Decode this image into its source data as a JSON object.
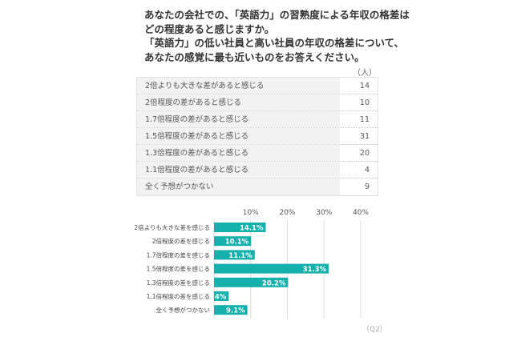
{
  "title": [
    "あなたの会社での、「英語力」の習熟度による年収の格差は",
    "どの程度あると感じますか。",
    "「英語力」の低い社員と高い社員の年収の格差について、",
    "あなたの感覚に最も近いものをお答えください。"
  ],
  "table": {
    "unit": "（人）",
    "rows": [
      {
        "label": "2倍よりも大きな差があると感じる",
        "value": "14"
      },
      {
        "label": "2倍程度の差があると感じる",
        "value": "10"
      },
      {
        "label": "1.7倍程度の差があると感じる",
        "value": "11"
      },
      {
        "label": "1.5倍程度の差があると感じる",
        "value": "31"
      },
      {
        "label": "1.3倍程度の差があると感じる",
        "value": "20"
      },
      {
        "label": "1.1倍程度の差があると感じる",
        "value": "4"
      },
      {
        "label": "全く予想がつかない",
        "value": "9"
      }
    ]
  },
  "chart_data": {
    "type": "bar",
    "orientation": "horizontal",
    "categories": [
      "2倍よりも大きな差を感じる",
      "2倍程度の差を感じる",
      "1.7倍程度の差を感じる",
      "1.5倍程度の差を感じる",
      "1.3倍程度の差を感じる",
      "1.1倍程度の差を感じる",
      "全く予想がつかない"
    ],
    "values": [
      14.1,
      10.1,
      11.1,
      31.3,
      20.2,
      4,
      9.1
    ],
    "data_labels": [
      "14.1%",
      "10.1%",
      "11.1%",
      "31.3%",
      "20.2%",
      "4%",
      "9.1%"
    ],
    "xticks": [
      "10%",
      "20%",
      "30%",
      "40%"
    ],
    "xlim": [
      0,
      40
    ],
    "grid": true,
    "bar_color": "#14b0ac"
  },
  "question_id": "（Q2）"
}
